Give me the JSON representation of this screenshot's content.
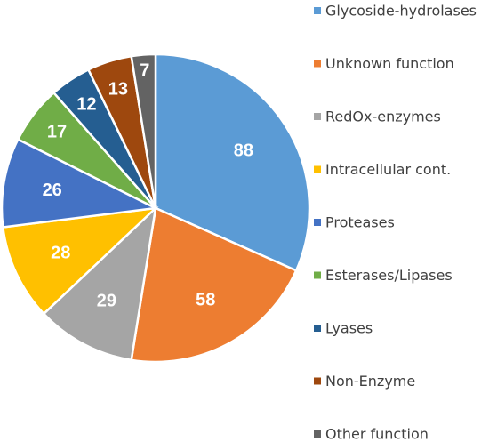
{
  "chart_data": {
    "type": "pie",
    "categories": [
      "Glycoside-hydrolases",
      "Unknown function",
      "RedOx-enzymes",
      "Intracellular cont.",
      "Proteases",
      "Esterases/Lipases",
      "Lyases",
      "Non-Enzyme",
      "Other function"
    ],
    "values": [
      88,
      58,
      29,
      28,
      26,
      17,
      12,
      13,
      7
    ],
    "colors": [
      "#5B9BD5",
      "#ED7D31",
      "#A5A5A5",
      "#FFC000",
      "#4472C4",
      "#70AD47",
      "#255E91",
      "#9E480E",
      "#636363"
    ],
    "start_angle_deg": 0,
    "direction": "clockwise",
    "legend_position": "right",
    "data_labels": "inside"
  }
}
